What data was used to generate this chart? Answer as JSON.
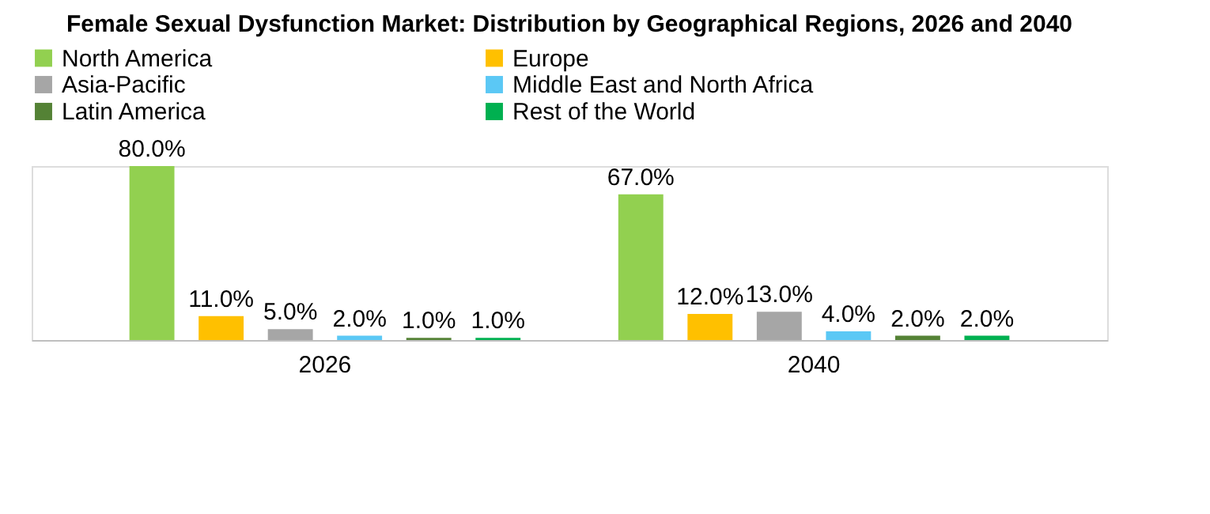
{
  "chart_data": {
    "type": "bar",
    "title": "Female Sexual Dysfunction Market: Distribution by Geographical Regions, 2026 and 2040",
    "categories": [
      "2026",
      "2040"
    ],
    "series": [
      {
        "name": "North America",
        "color": "#92d050",
        "values": [
          80.0,
          67.0
        ],
        "value_labels": [
          "80.0%",
          "67.0%"
        ]
      },
      {
        "name": "Europe",
        "color": "#ffc000",
        "values": [
          11.0,
          12.0
        ],
        "value_labels": [
          "11.0%",
          "12.0%"
        ]
      },
      {
        "name": "Asia-Pacific",
        "color": "#a6a6a6",
        "values": [
          5.0,
          13.0
        ],
        "value_labels": [
          "5.0%",
          "13.0%"
        ]
      },
      {
        "name": "Middle East and North Africa",
        "color": "#5bc8f5",
        "values": [
          2.0,
          4.0
        ],
        "value_labels": [
          "2.0%",
          "4.0%"
        ]
      },
      {
        "name": "Latin America",
        "color": "#548235",
        "values": [
          1.0,
          2.0
        ],
        "value_labels": [
          "1.0%",
          "2.0%"
        ]
      },
      {
        "name": "Rest of the World",
        "color": "#00b050",
        "values": [
          1.0,
          2.0
        ],
        "value_labels": [
          "1.0%",
          "2.0%"
        ]
      }
    ],
    "legend": "top left",
    "tick_labels": "x",
    "grid": false
  }
}
